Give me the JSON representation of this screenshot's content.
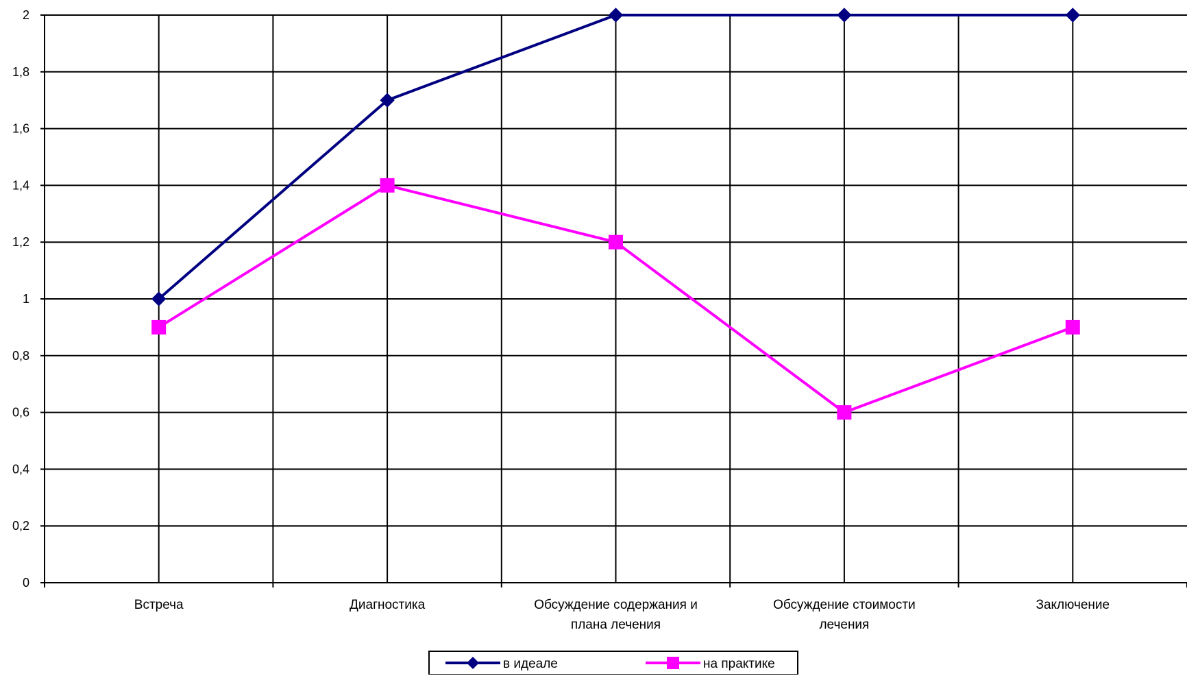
{
  "chart_data": {
    "type": "line",
    "title": "",
    "xlabel": "",
    "ylabel": "",
    "categories": [
      [
        "Встреча"
      ],
      [
        "Диагностика"
      ],
      [
        "Обсуждение содержания и",
        "плана лечения"
      ],
      [
        "Обсуждение стоимости",
        "лечения"
      ],
      [
        "Заключение"
      ]
    ],
    "y_ticks": [
      "0",
      "0,2",
      "0,4",
      "0,6",
      "0,8",
      "1",
      "1,2",
      "1,4",
      "1,6",
      "1,8",
      "2"
    ],
    "ylim": [
      0,
      2
    ],
    "grid": true,
    "legend_position": "bottom",
    "series": [
      {
        "name": "в идеале",
        "values": [
          1,
          1.7,
          2,
          2,
          2
        ],
        "color": "#000080",
        "marker": "diamond"
      },
      {
        "name": "на практике",
        "values": [
          0.9,
          1.4,
          1.2,
          0.6,
          0.9
        ],
        "color": "#ff00ff",
        "marker": "square"
      }
    ]
  }
}
